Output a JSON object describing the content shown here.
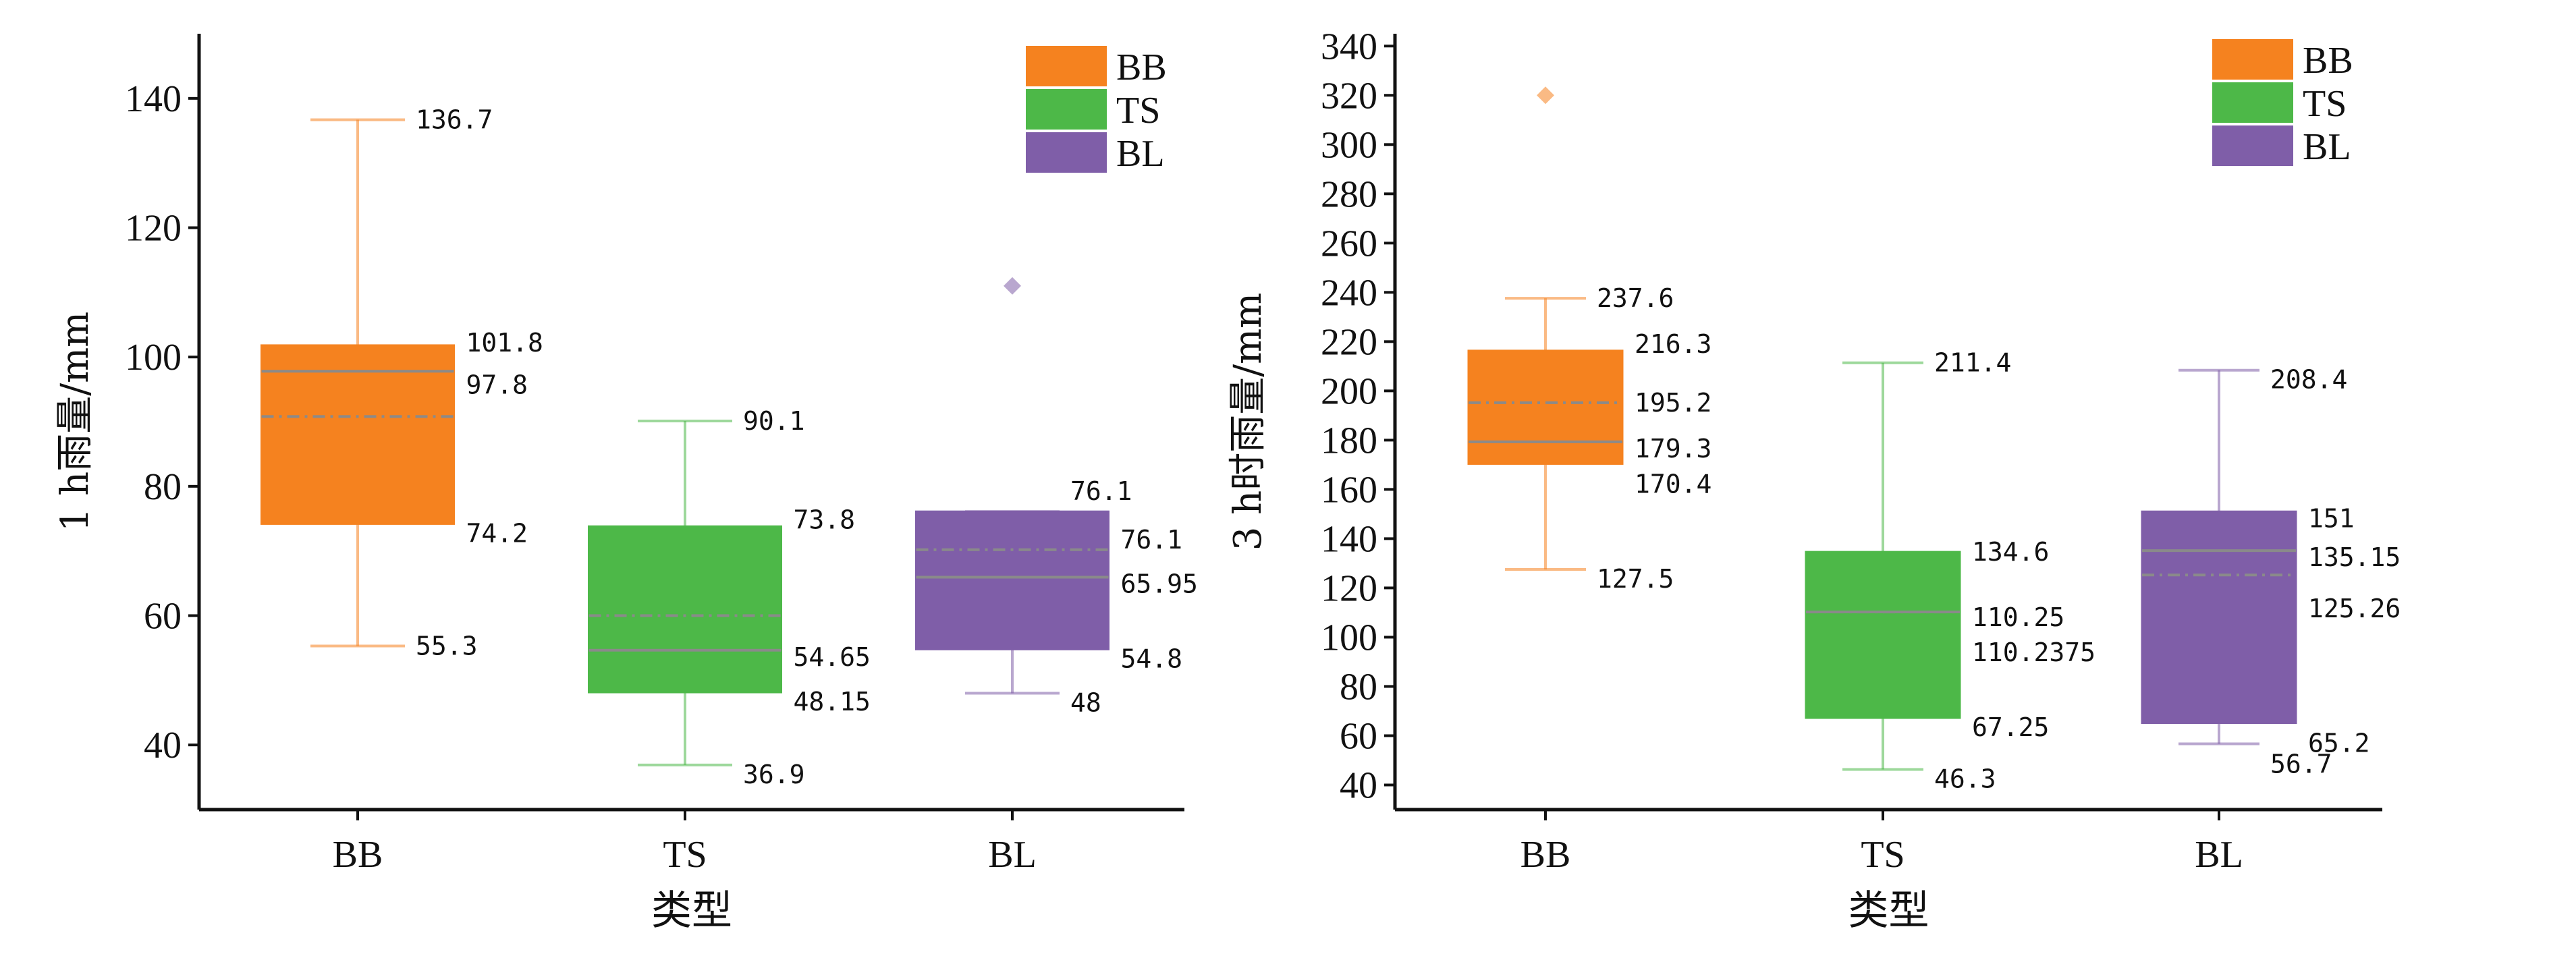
{
  "colors": {
    "BB": "#f5821f",
    "TS": "#4db848",
    "BL": "#7f5ea8"
  },
  "chart_data": [
    {
      "type": "box",
      "xlabel": "类型",
      "ylabel": "1 h雨量/mm",
      "ylim": [
        30,
        150
      ],
      "yticks": [
        40,
        60,
        80,
        100,
        120,
        140
      ],
      "categories": [
        "BB",
        "TS",
        "BL"
      ],
      "legend": [
        "BB",
        "TS",
        "BL"
      ],
      "boxes": [
        {
          "category": "BB",
          "min": 55.3,
          "q1": 74.2,
          "median": 97.8,
          "mean": 90.8,
          "q3": 101.8,
          "max": 136.7,
          "outliers": [],
          "labels": {
            "max": "136.7",
            "q3": "101.8",
            "median": "97.8",
            "q1": "74.2",
            "min": "55.3"
          }
        },
        {
          "category": "TS",
          "min": 36.9,
          "q1": 48.15,
          "median": 54.65,
          "mean": 60.0,
          "q3": 73.8,
          "max": 90.1,
          "outliers": [],
          "labels": {
            "max": "90.1",
            "q3": "73.8",
            "median": "54.65",
            "q1": "48.15",
            "min": "36.9"
          }
        },
        {
          "category": "BL",
          "min": 48,
          "q1": 54.8,
          "median": 65.95,
          "mean": 70.2,
          "q3": 76.1,
          "max": 76.1,
          "outliers": [
            111
          ],
          "labels": {
            "max": "76.1",
            "q3": "76.1",
            "median": "65.95",
            "q1": "54.8",
            "min": "48"
          }
        }
      ]
    },
    {
      "type": "box",
      "xlabel": "类型",
      "ylabel": "3 h时雨量/mm",
      "ylim": [
        30,
        345
      ],
      "yticks": [
        40,
        60,
        80,
        100,
        120,
        140,
        160,
        180,
        200,
        220,
        240,
        260,
        280,
        300,
        320,
        340
      ],
      "categories": [
        "BB",
        "TS",
        "BL"
      ],
      "legend": [
        "BB",
        "TS",
        "BL"
      ],
      "boxes": [
        {
          "category": "BB",
          "min": 127.5,
          "q1": 170.4,
          "median": 179.3,
          "mean": 195.2,
          "q3": 216.3,
          "max": 237.6,
          "outliers": [
            320
          ],
          "labels": {
            "max": "237.6",
            "q3": "216.3",
            "mean": "195.2",
            "median": "179.3",
            "q1": "170.4",
            "min": "127.5"
          }
        },
        {
          "category": "TS",
          "min": 46.3,
          "q1": 67.25,
          "median": 110.25,
          "mean": 110.2375,
          "q3": 134.6,
          "max": 211.4,
          "outliers": [],
          "labels": {
            "max": "211.4",
            "q3": "134.6",
            "median": "110.25",
            "mean": "110.2375",
            "q1": "67.25",
            "min": "46.3"
          }
        },
        {
          "category": "BL",
          "min": 56.7,
          "q1": 65.2,
          "median": 135.15,
          "mean": 125.26,
          "q3": 151,
          "max": 208.4,
          "outliers": [],
          "labels": {
            "max": "208.4",
            "q3": "151",
            "median": "135.15",
            "mean": "125.26",
            "q1": "65.2",
            "min": "56.7"
          }
        }
      ]
    }
  ]
}
